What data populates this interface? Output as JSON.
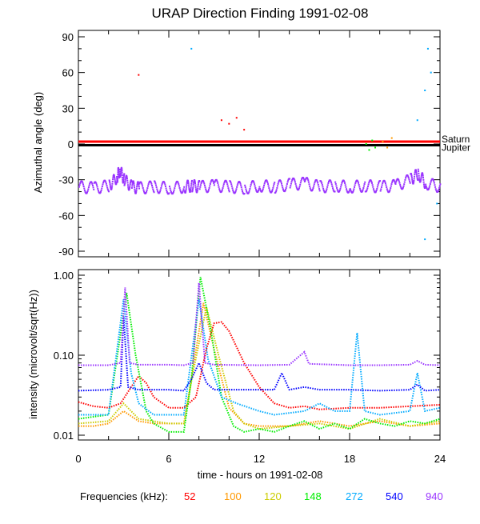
{
  "chart_data": [
    {
      "type": "scatter",
      "title": "URAP Direction Finding  1991-02-08",
      "ylabel": "Azimuthal angle (deg)",
      "xlim": [
        0,
        24
      ],
      "ylim": [
        -95,
        95
      ],
      "yticks": [
        "90",
        "60",
        "30",
        "0",
        "-30",
        "-60",
        "-90"
      ],
      "ytick_values": [
        90,
        60,
        30,
        0,
        -30,
        -60,
        -90
      ],
      "reference_lines": [
        {
          "name": "Saturn",
          "value": 2,
          "color": "#ff0000"
        },
        {
          "name": "Jupiter",
          "value": -1,
          "color": "#000000"
        }
      ],
      "series": [
        {
          "name": "940",
          "color": "#9933ff",
          "points": [
            [
              0,
              -36
            ],
            [
              1,
              -37
            ],
            [
              2,
              -35
            ],
            [
              2.5,
              -28
            ],
            [
              2.7,
              -22
            ],
            [
              3,
              -30
            ],
            [
              3.5,
              -36
            ],
            [
              4,
              -37
            ],
            [
              5,
              -36
            ],
            [
              6,
              -37
            ],
            [
              7,
              -36
            ],
            [
              7.5,
              -35
            ],
            [
              8,
              -36
            ],
            [
              9,
              -35
            ],
            [
              10,
              -36
            ],
            [
              11,
              -37
            ],
            [
              12,
              -35
            ],
            [
              13,
              -36
            ],
            [
              14,
              -34
            ],
            [
              15,
              -33
            ],
            [
              16,
              -36
            ],
            [
              17,
              -35
            ],
            [
              18,
              -36
            ],
            [
              19,
              -35
            ],
            [
              20,
              -36
            ],
            [
              21,
              -35
            ],
            [
              22,
              -30
            ],
            [
              22.5,
              -25
            ],
            [
              23,
              -33
            ],
            [
              24,
              -36
            ]
          ]
        },
        {
          "name": "148",
          "color": "#00ee00",
          "points": [
            [
              19.1,
              0
            ],
            [
              19.3,
              -5
            ],
            [
              19.5,
              3
            ],
            [
              19.7,
              -3
            ]
          ]
        },
        {
          "name": "100",
          "color": "#ff9900",
          "points": [
            [
              20.2,
              2
            ],
            [
              20.5,
              -3
            ],
            [
              20.8,
              5
            ]
          ]
        },
        {
          "name": "52",
          "color": "#ff0000",
          "points": [
            [
              4,
              58
            ],
            [
              9.5,
              20
            ],
            [
              10,
              17
            ],
            [
              10.5,
              22
            ],
            [
              11,
              12
            ]
          ]
        },
        {
          "name": "272",
          "color": "#00aaff",
          "points": [
            [
              7.5,
              80
            ],
            [
              22.5,
              20
            ],
            [
              23,
              45
            ],
            [
              23.2,
              80
            ],
            [
              23.4,
              60
            ],
            [
              23.8,
              -50
            ],
            [
              23,
              -80
            ]
          ]
        }
      ]
    },
    {
      "type": "scatter",
      "ylabel": "intensity (microvolt/sqrt(Hz))",
      "xlabel": "time - hours on 1991-02-08",
      "yscale": "log",
      "ylim": [
        0.01,
        1.0
      ],
      "yticks": [
        "1.00",
        "0.10",
        "0.01"
      ],
      "ytick_values": [
        1.0,
        0.1,
        0.01
      ],
      "xlim": [
        0,
        24
      ],
      "xticks": [
        "0",
        "6",
        "12",
        "18",
        "24"
      ],
      "xtick_values": [
        0,
        6,
        12,
        18,
        24
      ],
      "legend_label": "Frequencies (kHz):",
      "series": [
        {
          "name": "52",
          "color": "#ff0000",
          "points": [
            [
              0,
              0.026
            ],
            [
              1,
              0.023
            ],
            [
              2,
              0.022
            ],
            [
              2.8,
              0.025
            ],
            [
              3.5,
              0.04
            ],
            [
              4,
              0.055
            ],
            [
              4.5,
              0.045
            ],
            [
              5,
              0.03
            ],
            [
              6,
              0.022
            ],
            [
              7,
              0.022
            ],
            [
              7.8,
              0.03
            ],
            [
              8.5,
              0.12
            ],
            [
              9,
              0.25
            ],
            [
              9.5,
              0.26
            ],
            [
              10,
              0.2
            ],
            [
              11,
              0.08
            ],
            [
              12,
              0.04
            ],
            [
              13,
              0.025
            ],
            [
              14,
              0.022
            ],
            [
              15,
              0.023
            ],
            [
              16,
              0.021
            ],
            [
              18,
              0.022
            ],
            [
              20,
              0.022
            ],
            [
              22,
              0.023
            ],
            [
              24,
              0.024
            ]
          ]
        },
        {
          "name": "100",
          "color": "#ff9900",
          "points": [
            [
              0,
              0.013
            ],
            [
              1,
              0.013
            ],
            [
              2,
              0.014
            ],
            [
              3,
              0.02
            ],
            [
              4,
              0.015
            ],
            [
              5,
              0.014
            ],
            [
              6,
              0.014
            ],
            [
              7,
              0.014
            ],
            [
              7.5,
              0.05
            ],
            [
              8.3,
              0.45
            ],
            [
              9,
              0.12
            ],
            [
              10,
              0.022
            ],
            [
              11,
              0.014
            ],
            [
              12,
              0.013
            ],
            [
              14,
              0.013
            ],
            [
              16,
              0.015
            ],
            [
              18,
              0.013
            ],
            [
              20,
              0.015
            ],
            [
              22,
              0.013
            ],
            [
              24,
              0.014
            ]
          ]
        },
        {
          "name": "120",
          "color": "#cccc00",
          "points": [
            [
              0,
              0.014
            ],
            [
              2,
              0.015
            ],
            [
              3,
              0.025
            ],
            [
              4,
              0.016
            ],
            [
              6,
              0.014
            ],
            [
              7,
              0.014
            ],
            [
              7.6,
              0.06
            ],
            [
              8.5,
              0.4
            ],
            [
              9.3,
              0.1
            ],
            [
              10.3,
              0.02
            ],
            [
              11,
              0.014
            ],
            [
              12,
              0.012
            ],
            [
              14,
              0.013
            ],
            [
              16,
              0.014
            ],
            [
              18,
              0.012
            ],
            [
              20,
              0.016
            ],
            [
              22,
              0.013
            ],
            [
              24,
              0.015
            ]
          ]
        },
        {
          "name": "148",
          "color": "#00ee00",
          "points": [
            [
              0,
              0.016
            ],
            [
              1,
              0.017
            ],
            [
              2,
              0.018
            ],
            [
              3.2,
              0.6
            ],
            [
              3.8,
              0.1
            ],
            [
              4.5,
              0.02
            ],
            [
              5,
              0.014
            ],
            [
              6,
              0.011
            ],
            [
              7,
              0.011
            ],
            [
              7.5,
              0.05
            ],
            [
              8.1,
              0.95
            ],
            [
              8.8,
              0.2
            ],
            [
              9.5,
              0.03
            ],
            [
              10.3,
              0.013
            ],
            [
              11,
              0.011
            ],
            [
              12,
              0.012
            ],
            [
              13,
              0.011
            ],
            [
              14,
              0.013
            ],
            [
              15,
              0.015
            ],
            [
              16,
              0.012
            ],
            [
              17,
              0.014
            ],
            [
              18,
              0.012
            ],
            [
              19,
              0.016
            ],
            [
              20,
              0.014
            ],
            [
              21,
              0.013
            ],
            [
              22,
              0.015
            ],
            [
              23,
              0.014
            ],
            [
              24,
              0.016
            ]
          ]
        },
        {
          "name": "272",
          "color": "#00aaff",
          "points": [
            [
              0,
              0.018
            ],
            [
              2,
              0.018
            ],
            [
              3,
              0.5
            ],
            [
              3.5,
              0.06
            ],
            [
              4,
              0.025
            ],
            [
              5,
              0.018
            ],
            [
              6,
              0.018
            ],
            [
              7,
              0.018
            ],
            [
              8,
              0.5
            ],
            [
              8.6,
              0.09
            ],
            [
              9.5,
              0.03
            ],
            [
              10.5,
              0.025
            ],
            [
              12,
              0.02
            ],
            [
              13,
              0.018
            ],
            [
              15,
              0.02
            ],
            [
              16,
              0.025
            ],
            [
              17,
              0.02
            ],
            [
              18,
              0.02
            ],
            [
              18.5,
              0.19
            ],
            [
              19,
              0.02
            ],
            [
              20,
              0.018
            ],
            [
              22,
              0.02
            ],
            [
              22.5,
              0.06
            ],
            [
              23,
              0.02
            ],
            [
              24,
              0.022
            ]
          ]
        },
        {
          "name": "540",
          "color": "#0000ff",
          "points": [
            [
              0,
              0.036
            ],
            [
              2,
              0.037
            ],
            [
              2.8,
              0.04
            ],
            [
              3,
              0.3
            ],
            [
              3.3,
              0.04
            ],
            [
              4,
              0.037
            ],
            [
              6,
              0.037
            ],
            [
              7,
              0.036
            ],
            [
              7.5,
              0.05
            ],
            [
              8,
              0.08
            ],
            [
              8.5,
              0.045
            ],
            [
              9,
              0.037
            ],
            [
              12,
              0.037
            ],
            [
              13,
              0.037
            ],
            [
              13.5,
              0.06
            ],
            [
              14,
              0.037
            ],
            [
              15,
              0.04
            ],
            [
              16,
              0.037
            ],
            [
              18,
              0.037
            ],
            [
              20,
              0.036
            ],
            [
              22,
              0.037
            ],
            [
              22.5,
              0.043
            ],
            [
              23,
              0.036
            ],
            [
              24,
              0.037
            ]
          ]
        },
        {
          "name": "940",
          "color": "#9933ff",
          "points": [
            [
              0,
              0.075
            ],
            [
              2,
              0.075
            ],
            [
              2.8,
              0.08
            ],
            [
              3.1,
              0.7
            ],
            [
              3.4,
              0.08
            ],
            [
              4,
              0.076
            ],
            [
              6,
              0.076
            ],
            [
              7,
              0.075
            ],
            [
              7.6,
              0.08
            ],
            [
              8,
              0.8
            ],
            [
              8.4,
              0.08
            ],
            [
              9,
              0.076
            ],
            [
              12,
              0.075
            ],
            [
              14,
              0.076
            ],
            [
              15,
              0.11
            ],
            [
              15.3,
              0.078
            ],
            [
              18,
              0.075
            ],
            [
              20,
              0.075
            ],
            [
              22,
              0.076
            ],
            [
              22.5,
              0.085
            ],
            [
              23,
              0.076
            ],
            [
              24,
              0.075
            ]
          ]
        }
      ]
    }
  ]
}
